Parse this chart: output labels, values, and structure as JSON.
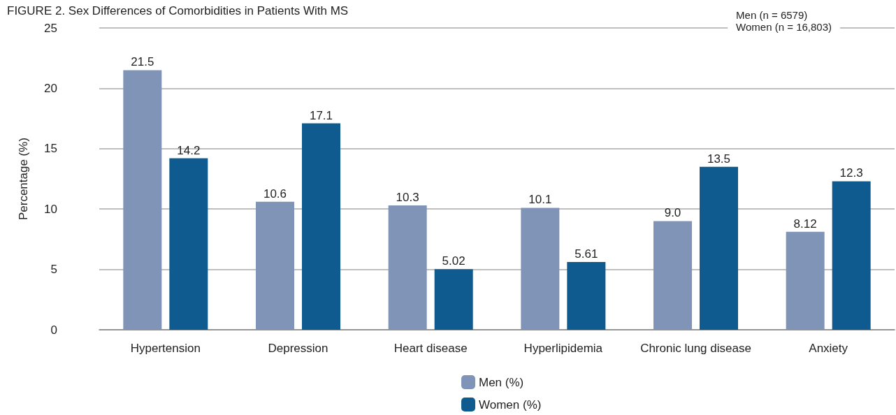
{
  "chart_data": {
    "type": "bar",
    "title": "FIGURE 2. Sex Differences of Comorbidities in Patients With MS",
    "ylabel": "Percentage (%)",
    "categories": [
      "Hypertension",
      "Depression",
      "Heart disease",
      "Hyperlipidemia",
      "Chronic lung disease",
      "Anxiety"
    ],
    "series": [
      {
        "name": "Men (%)",
        "color": "#8094b8",
        "values": [
          21.5,
          10.6,
          10.3,
          10.1,
          9.0,
          8.12
        ],
        "value_labels": [
          "21.5",
          "10.6",
          "10.3",
          "10.1",
          "9.0",
          "8.12"
        ]
      },
      {
        "name": "Women (%)",
        "color": "#0f5a8e",
        "values": [
          14.2,
          17.1,
          5.02,
          5.61,
          13.5,
          12.3
        ],
        "value_labels": [
          "14.2",
          "17.1",
          "5.02",
          "5.61",
          "13.5",
          "12.3"
        ]
      }
    ],
    "annotations": [
      "Men (n = 6579)",
      "Women (n = 16,803)"
    ],
    "ylim": [
      0,
      25
    ],
    "yticks": [
      0,
      5,
      10,
      15,
      20,
      25
    ],
    "grid": "y",
    "legend": "bottom"
  }
}
